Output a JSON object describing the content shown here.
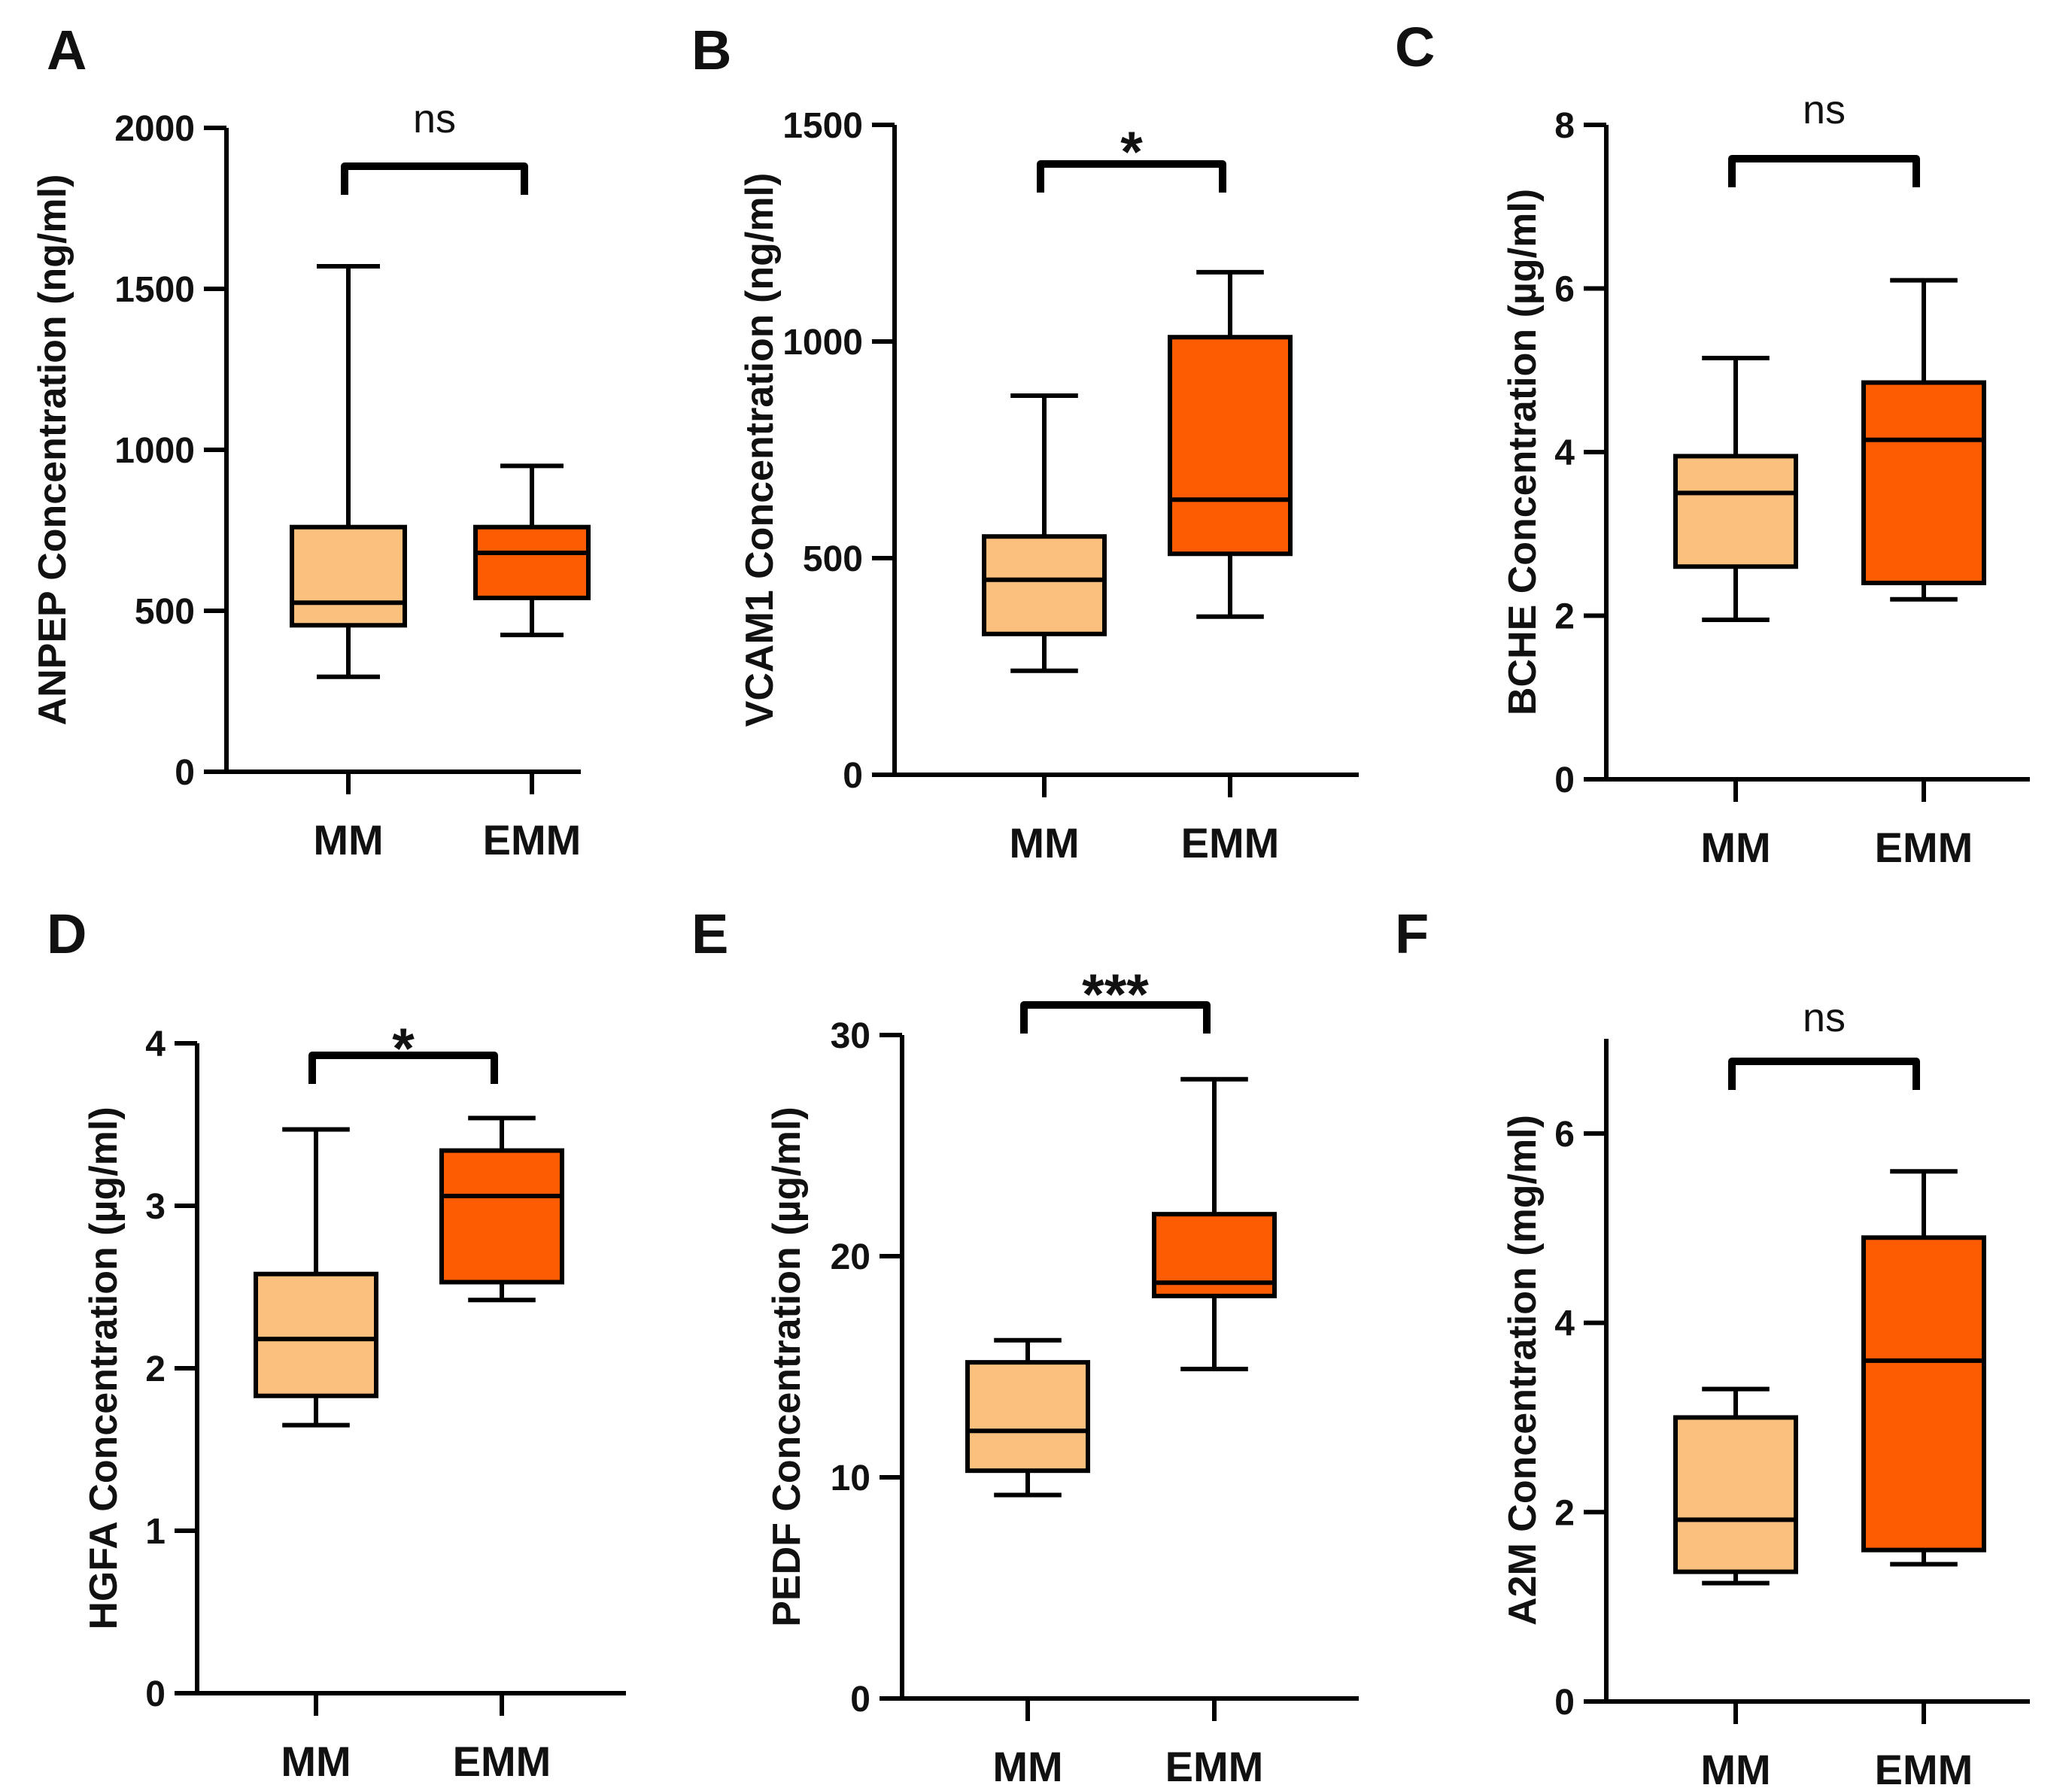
{
  "colors": {
    "MM": "#fbc07e",
    "EMM": "#fe5c02",
    "line": "#000000"
  },
  "chart_data": [
    {
      "type": "box",
      "panel": "A",
      "ylabel": "ANPEP Concentration (ng/ml)",
      "ylim": [
        0,
        2000
      ],
      "yticks": [
        0,
        500,
        1000,
        1500,
        2000
      ],
      "categories": [
        "MM",
        "EMM"
      ],
      "series": [
        {
          "name": "MM",
          "min": 295,
          "q1": 455,
          "median": 525,
          "q3": 760,
          "max": 1570
        },
        {
          "name": "EMM",
          "min": 425,
          "q1": 540,
          "median": 680,
          "q3": 760,
          "max": 950
        }
      ],
      "significance": "ns"
    },
    {
      "type": "box",
      "panel": "B",
      "ylabel": "VCAM1 Concentration (ng/ml)",
      "ylim": [
        0,
        1500
      ],
      "yticks": [
        0,
        500,
        1000,
        1500
      ],
      "categories": [
        "MM",
        "EMM"
      ],
      "series": [
        {
          "name": "MM",
          "min": 240,
          "q1": 325,
          "median": 450,
          "q3": 550,
          "max": 875
        },
        {
          "name": "EMM",
          "min": 365,
          "q1": 510,
          "median": 635,
          "q3": 1010,
          "max": 1160
        }
      ],
      "significance": "*"
    },
    {
      "type": "box",
      "panel": "C",
      "ylabel": "BCHE Concentration (µg/ml)",
      "ylim": [
        0,
        8
      ],
      "yticks": [
        0,
        2,
        4,
        6,
        8
      ],
      "categories": [
        "MM",
        "EMM"
      ],
      "series": [
        {
          "name": "MM",
          "min": 1.95,
          "q1": 2.6,
          "median": 3.5,
          "q3": 3.95,
          "max": 5.15
        },
        {
          "name": "EMM",
          "min": 2.2,
          "q1": 2.4,
          "median": 4.15,
          "q3": 4.85,
          "max": 6.1
        }
      ],
      "significance": "ns"
    },
    {
      "type": "box",
      "panel": "D",
      "ylabel": "HGFA Concentration (µg/ml)",
      "ylim": [
        0,
        4
      ],
      "yticks": [
        0,
        1,
        2,
        3,
        4
      ],
      "categories": [
        "MM",
        "EMM"
      ],
      "series": [
        {
          "name": "MM",
          "min": 1.65,
          "q1": 1.83,
          "median": 2.18,
          "q3": 2.58,
          "max": 3.47
        },
        {
          "name": "EMM",
          "min": 2.42,
          "q1": 2.53,
          "median": 3.06,
          "q3": 3.34,
          "max": 3.54
        }
      ],
      "significance": "*"
    },
    {
      "type": "box",
      "panel": "E",
      "ylabel": "PEDF Concentration (µg/ml)",
      "ylim": [
        0,
        30
      ],
      "yticks": [
        0,
        10,
        20,
        30
      ],
      "categories": [
        "MM",
        "EMM"
      ],
      "series": [
        {
          "name": "MM",
          "min": 9.2,
          "q1": 10.3,
          "median": 12.1,
          "q3": 15.2,
          "max": 16.2
        },
        {
          "name": "EMM",
          "min": 14.9,
          "q1": 18.2,
          "median": 18.8,
          "q3": 21.9,
          "max": 28
        }
      ],
      "significance": "***"
    },
    {
      "type": "box",
      "panel": "F",
      "ylabel": "A2M Concentration (mg/ml)",
      "ylim": [
        0,
        7
      ],
      "yticks": [
        0,
        2,
        4,
        6
      ],
      "categories": [
        "MM",
        "EMM"
      ],
      "series": [
        {
          "name": "MM",
          "min": 1.25,
          "q1": 1.37,
          "median": 1.92,
          "q3": 3.0,
          "max": 3.3
        },
        {
          "name": "EMM",
          "min": 1.45,
          "q1": 1.6,
          "median": 3.6,
          "q3": 4.9,
          "max": 5.6
        }
      ],
      "significance": "ns"
    }
  ]
}
